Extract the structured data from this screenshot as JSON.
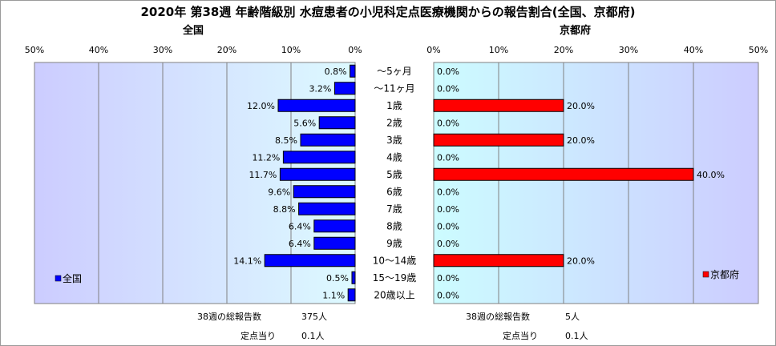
{
  "title": "2020年 第38週 年齢階級別 水痘患者の小児科定点医療機関からの報告割合(全国、京都府)",
  "chart_data": {
    "type": "bar",
    "orientation": "horizontal",
    "categories": [
      "～5ヶ月",
      "～11ヶ月",
      "1歳",
      "2歳",
      "3歳",
      "4歳",
      "5歳",
      "6歳",
      "7歳",
      "8歳",
      "9歳",
      "10～14歳",
      "15～19歳",
      "20歳以上"
    ],
    "panels": [
      {
        "title": "全国",
        "series_name": "全国",
        "values": [
          0.8,
          3.2,
          12.0,
          5.6,
          8.5,
          11.2,
          11.7,
          9.6,
          8.8,
          6.4,
          6.4,
          14.1,
          0.5,
          1.1
        ],
        "value_labels": [
          "0.8%",
          "3.2%",
          "12.0%",
          "5.6%",
          "8.5%",
          "11.2%",
          "11.7%",
          "9.6%",
          "8.8%",
          "6.4%",
          "6.4%",
          "14.1%",
          "0.5%",
          "1.1%"
        ],
        "color": "#0000ff",
        "xlim": [
          0,
          50
        ],
        "direction": "reversed",
        "ticks": [
          "50%",
          "40%",
          "30%",
          "20%",
          "10%",
          "0%"
        ],
        "legend": "left"
      },
      {
        "title": "京都府",
        "series_name": "京都府",
        "values": [
          0.0,
          0.0,
          20.0,
          0.0,
          20.0,
          0.0,
          40.0,
          0.0,
          0.0,
          0.0,
          0.0,
          20.0,
          0.0,
          0.0
        ],
        "value_labels": [
          "0.0%",
          "0.0%",
          "20.0%",
          "0.0%",
          "20.0%",
          "0.0%",
          "40.0%",
          "0.0%",
          "0.0%",
          "0.0%",
          "0.0%",
          "20.0%",
          "0.0%",
          "0.0%"
        ],
        "color": "#ff0000",
        "xlim": [
          0,
          50
        ],
        "direction": "normal",
        "ticks": [
          "0%",
          "10%",
          "20%",
          "30%",
          "40%",
          "50%"
        ],
        "legend": "right"
      }
    ]
  },
  "footer": {
    "national": {
      "reports_label": "38週の総報告数",
      "reports_value": "375人",
      "per_site_label": "定点当り",
      "per_site_value": "0.1人"
    },
    "kyoto": {
      "reports_label": "38週の総報告数",
      "reports_value": "5人",
      "per_site_label": "定点当り",
      "per_site_value": "0.1人"
    }
  }
}
